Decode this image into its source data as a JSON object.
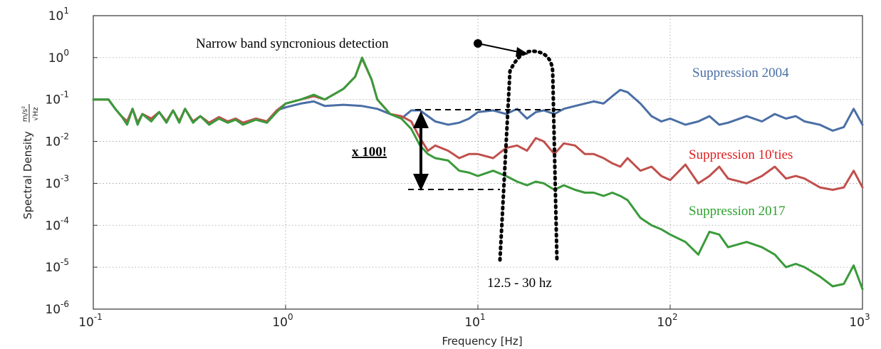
{
  "chart_data": {
    "type": "line",
    "title": "",
    "xlabel": "Frequency [Hz]",
    "ylabel": "Spectral Density",
    "ylabel_unit": {
      "numerator": "m/s²",
      "denominator": "√Hz"
    },
    "xscale": "log",
    "yscale": "log",
    "xlim": [
      0.1,
      1000
    ],
    "ylim": [
      1e-06,
      10
    ],
    "grid": true,
    "x_ticks": [
      {
        "base": "10",
        "exp": "-1",
        "value": 0.1
      },
      {
        "base": "10",
        "exp": "0",
        "value": 1
      },
      {
        "base": "10",
        "exp": "1",
        "value": 10
      },
      {
        "base": "10",
        "exp": "2",
        "value": 100
      },
      {
        "base": "10",
        "exp": "3",
        "value": 1000
      }
    ],
    "y_ticks": [
      {
        "base": "10",
        "exp": "1",
        "value": 10
      },
      {
        "base": "10",
        "exp": "0",
        "value": 1
      },
      {
        "base": "10",
        "exp": "-1",
        "value": 0.1
      },
      {
        "base": "10",
        "exp": "-2",
        "value": 0.01
      },
      {
        "base": "10",
        "exp": "-3",
        "value": 0.001
      },
      {
        "base": "10",
        "exp": "-4",
        "value": 0.0001
      },
      {
        "base": "10",
        "exp": "-5",
        "value": 1e-05
      },
      {
        "base": "10",
        "exp": "-6",
        "value": 1e-06
      }
    ],
    "series": [
      {
        "name": "Suppression 2004",
        "color": "#4a6fa5",
        "x": [
          0.1,
          0.12,
          0.13,
          0.14,
          0.15,
          0.16,
          0.17,
          0.18,
          0.2,
          0.22,
          0.24,
          0.26,
          0.28,
          0.3,
          0.33,
          0.36,
          0.4,
          0.45,
          0.5,
          0.55,
          0.6,
          0.7,
          0.8,
          0.9,
          1.0,
          1.2,
          1.4,
          1.6,
          2.0,
          2.5,
          3.0,
          3.5,
          4.0,
          4.5,
          5.0,
          5.5,
          6.0,
          7.0,
          8.0,
          9.0,
          10,
          12,
          14,
          16,
          18,
          20,
          22,
          25,
          28,
          32,
          36,
          40,
          45,
          50,
          55,
          60,
          70,
          80,
          90,
          100,
          120,
          140,
          160,
          180,
          200,
          250,
          300,
          350,
          400,
          450,
          500,
          600,
          700,
          800,
          900,
          1000
        ],
        "y": [
          0.1,
          0.1,
          0.06,
          0.04,
          0.03,
          0.06,
          0.028,
          0.045,
          0.035,
          0.05,
          0.03,
          0.055,
          0.03,
          0.06,
          0.03,
          0.04,
          0.028,
          0.038,
          0.03,
          0.035,
          0.028,
          0.035,
          0.03,
          0.055,
          0.065,
          0.08,
          0.09,
          0.07,
          0.075,
          0.07,
          0.06,
          0.045,
          0.035,
          0.055,
          0.055,
          0.04,
          0.03,
          0.025,
          0.028,
          0.035,
          0.05,
          0.055,
          0.045,
          0.06,
          0.035,
          0.05,
          0.055,
          0.045,
          0.06,
          0.07,
          0.08,
          0.09,
          0.08,
          0.12,
          0.17,
          0.15,
          0.08,
          0.04,
          0.03,
          0.035,
          0.025,
          0.03,
          0.04,
          0.025,
          0.028,
          0.04,
          0.03,
          0.045,
          0.035,
          0.04,
          0.03,
          0.025,
          0.018,
          0.022,
          0.06,
          0.025
        ]
      },
      {
        "name": "Suppression 10'ties",
        "color": "#c0504d",
        "x": [
          0.1,
          0.12,
          0.13,
          0.14,
          0.15,
          0.16,
          0.17,
          0.18,
          0.2,
          0.22,
          0.24,
          0.26,
          0.28,
          0.3,
          0.33,
          0.36,
          0.4,
          0.45,
          0.5,
          0.55,
          0.6,
          0.7,
          0.8,
          0.9,
          1.0,
          1.2,
          1.4,
          1.6,
          2.0,
          2.3,
          2.5,
          2.8,
          3.0,
          3.5,
          4.0,
          4.5,
          5.0,
          5.5,
          6.0,
          7.0,
          8.0,
          9.0,
          10,
          12,
          14,
          16,
          18,
          20,
          22,
          25,
          28,
          32,
          36,
          40,
          45,
          50,
          55,
          60,
          70,
          80,
          90,
          100,
          120,
          140,
          160,
          180,
          200,
          250,
          300,
          350,
          400,
          450,
          500,
          600,
          700,
          800,
          900,
          1000
        ],
        "y": [
          0.1,
          0.1,
          0.06,
          0.04,
          0.03,
          0.06,
          0.028,
          0.045,
          0.035,
          0.05,
          0.03,
          0.055,
          0.03,
          0.06,
          0.03,
          0.04,
          0.028,
          0.038,
          0.03,
          0.035,
          0.028,
          0.035,
          0.03,
          0.055,
          0.08,
          0.1,
          0.12,
          0.1,
          0.18,
          0.35,
          0.95,
          0.3,
          0.1,
          0.045,
          0.04,
          0.03,
          0.012,
          0.006,
          0.008,
          0.006,
          0.004,
          0.005,
          0.005,
          0.004,
          0.007,
          0.008,
          0.006,
          0.012,
          0.01,
          0.005,
          0.009,
          0.008,
          0.005,
          0.005,
          0.004,
          0.003,
          0.0025,
          0.004,
          0.002,
          0.0025,
          0.0015,
          0.0012,
          0.0028,
          0.001,
          0.0015,
          0.0025,
          0.0013,
          0.001,
          0.0015,
          0.0025,
          0.0013,
          0.0015,
          0.0013,
          0.0008,
          0.0007,
          0.0008,
          0.002,
          0.0008
        ]
      },
      {
        "name": "Suppression 2017",
        "color": "#3a9a3a",
        "x": [
          0.1,
          0.12,
          0.13,
          0.14,
          0.15,
          0.16,
          0.17,
          0.18,
          0.2,
          0.22,
          0.24,
          0.26,
          0.28,
          0.3,
          0.33,
          0.36,
          0.4,
          0.45,
          0.5,
          0.55,
          0.6,
          0.7,
          0.8,
          0.9,
          1.0,
          1.2,
          1.4,
          1.6,
          2.0,
          2.3,
          2.5,
          2.8,
          3.0,
          3.5,
          4.0,
          4.5,
          5.0,
          5.5,
          6.0,
          7.0,
          8.0,
          9.0,
          10,
          12,
          14,
          16,
          18,
          20,
          22,
          25,
          28,
          32,
          36,
          40,
          45,
          50,
          55,
          60,
          70,
          80,
          90,
          100,
          120,
          140,
          160,
          180,
          200,
          250,
          300,
          350,
          400,
          450,
          500,
          600,
          700,
          800,
          900,
          1000
        ],
        "y": [
          0.1,
          0.1,
          0.06,
          0.04,
          0.025,
          0.06,
          0.025,
          0.045,
          0.03,
          0.05,
          0.028,
          0.055,
          0.028,
          0.06,
          0.028,
          0.04,
          0.025,
          0.035,
          0.028,
          0.033,
          0.025,
          0.033,
          0.028,
          0.05,
          0.08,
          0.1,
          0.13,
          0.1,
          0.18,
          0.35,
          1.0,
          0.3,
          0.1,
          0.045,
          0.035,
          0.02,
          0.008,
          0.005,
          0.004,
          0.0035,
          0.002,
          0.0018,
          0.0015,
          0.002,
          0.0015,
          0.0011,
          0.0009,
          0.0011,
          0.001,
          0.0007,
          0.0009,
          0.0007,
          0.0006,
          0.0006,
          0.0005,
          0.0006,
          0.0005,
          0.0004,
          0.00015,
          0.0001,
          8e-05,
          6e-05,
          4e-05,
          2e-05,
          7e-05,
          6e-05,
          3e-05,
          4e-05,
          3e-05,
          2e-05,
          1e-05,
          1.2e-05,
          1e-05,
          6e-06,
          3.5e-06,
          4e-06,
          1.1e-05,
          3e-06
        ]
      }
    ],
    "annotations": {
      "narrow_band": "Narrow band syncronious detection",
      "multiplier": "x 100!",
      "band_range": "12.5 - 30 hz"
    }
  }
}
